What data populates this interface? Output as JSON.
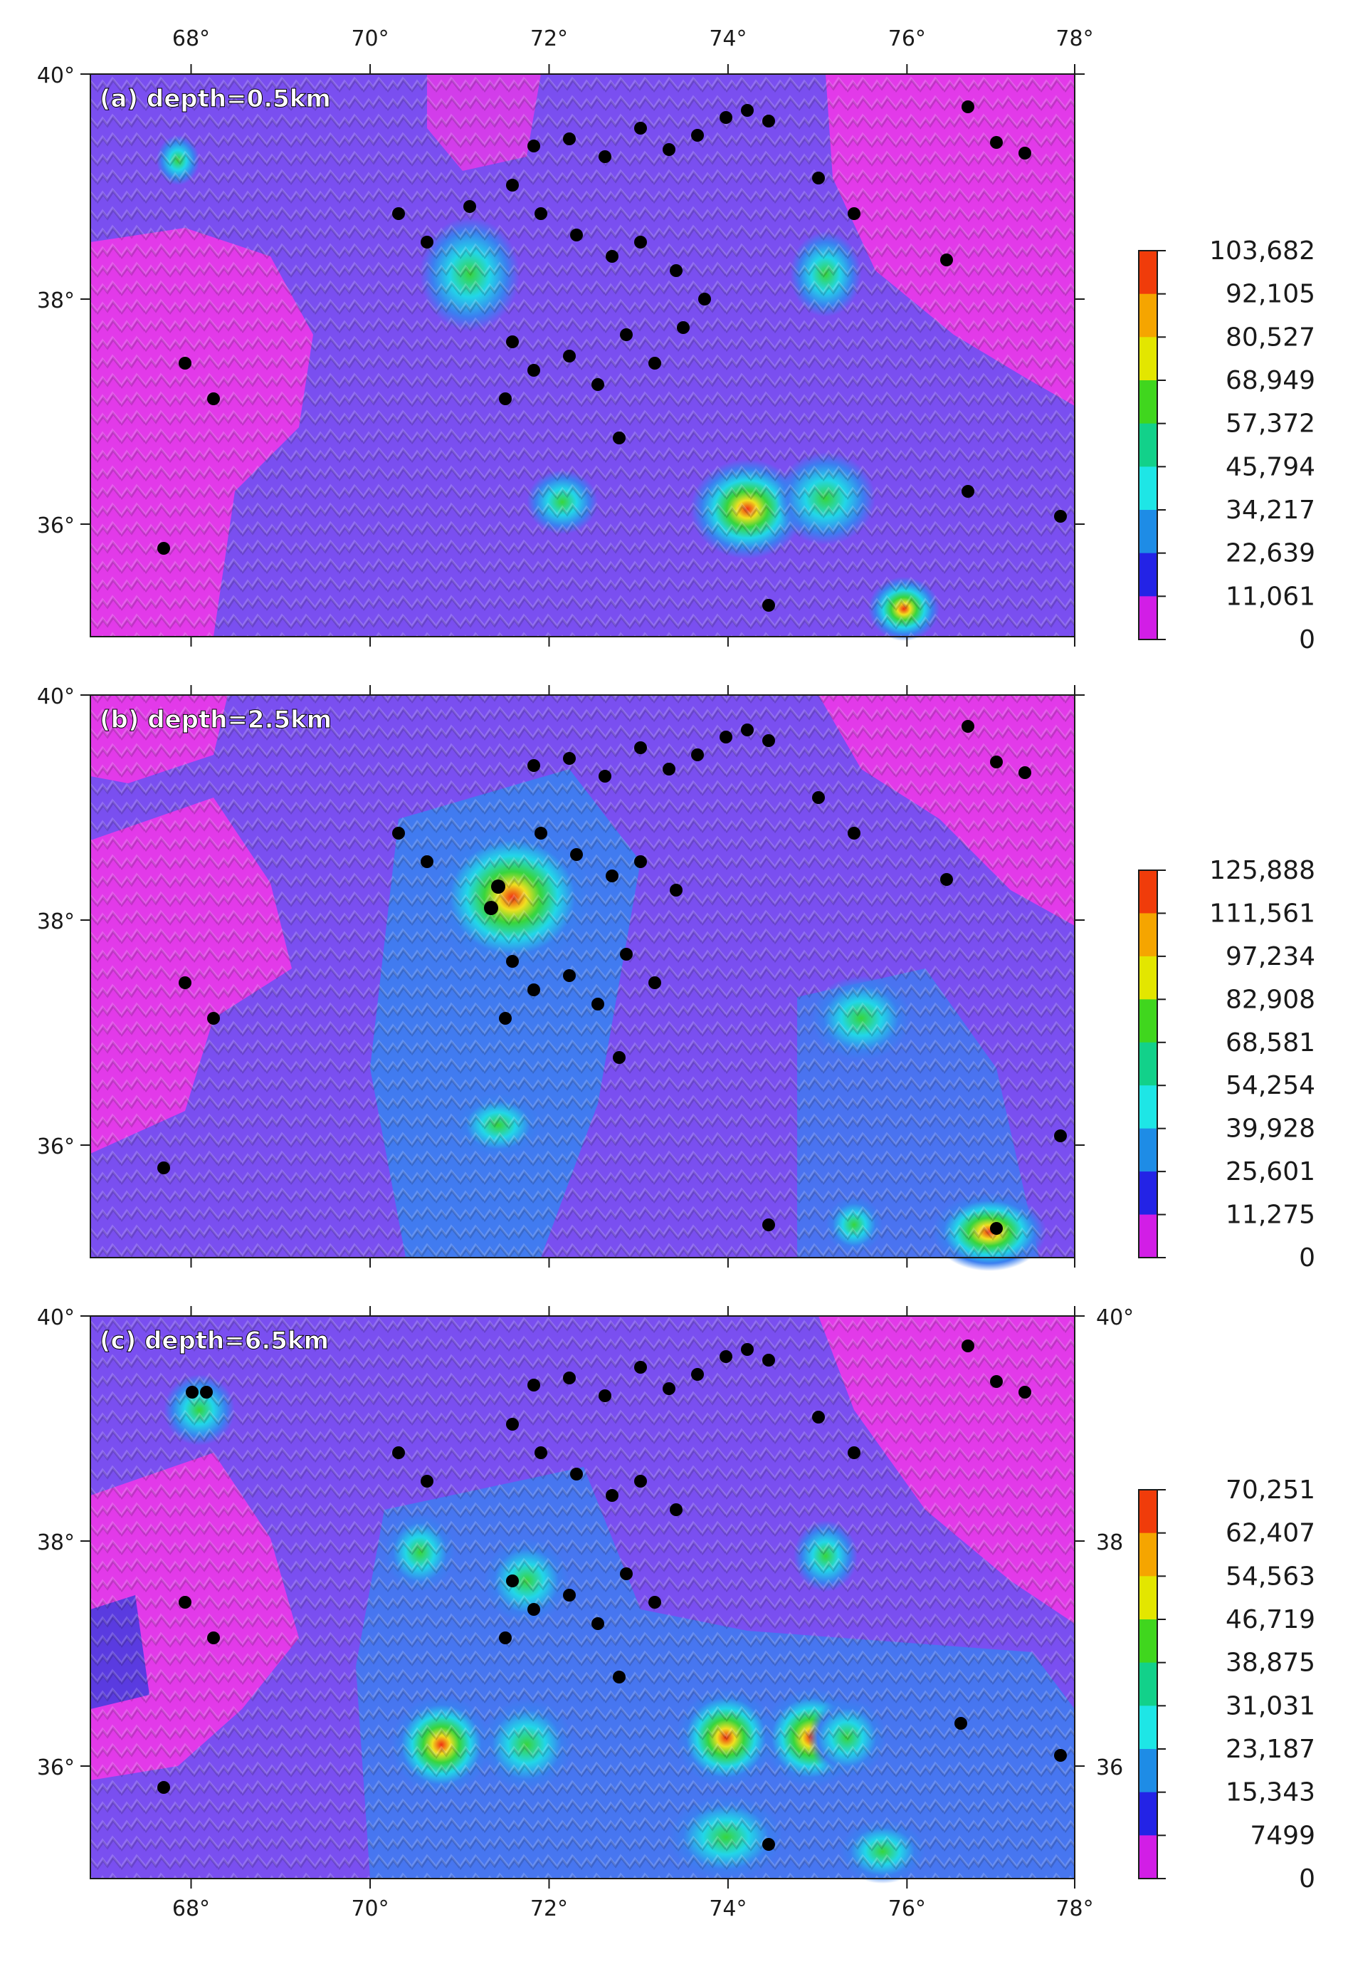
{
  "figure": {
    "x_ticks": [
      "68°",
      "70°",
      "72°",
      "74°",
      "76°",
      "78°"
    ],
    "y_ticks": [
      "40°",
      "38°",
      "36°"
    ],
    "panel_c_right_ticks": [
      "40°",
      "38",
      "36"
    ],
    "panels": [
      {
        "id": "a",
        "label": "(a) depth=0.5km",
        "colorbar_labels": [
          "103,682",
          "92,105",
          "80,527",
          "68,949",
          "57,372",
          "45,794",
          "34,217",
          "22,639",
          "11,061",
          "0"
        ]
      },
      {
        "id": "b",
        "label": "(b) depth=2.5km",
        "colorbar_labels": [
          "125,888",
          "111,561",
          "97,234",
          "82,908",
          "68,581",
          "54,254",
          "39,928",
          "25,601",
          "11,275",
          "0"
        ]
      },
      {
        "id": "c",
        "label": "(c) depth=6.5km",
        "colorbar_labels": [
          "70,251",
          "62,407",
          "54,563",
          "46,719",
          "38,875",
          "31,031",
          "23,187",
          "15,343",
          "7499",
          "0"
        ]
      }
    ],
    "colorbar_colors": [
      "#f03c0a",
      "#f5a500",
      "#e3e600",
      "#40d61e",
      "#12d18a",
      "#1ee6e6",
      "#1e8ce6",
      "#2323e6",
      "#d21ee6"
    ],
    "map_colors": {
      "background_violet": "#7a4ff0",
      "low_magenta": "#e23ae9",
      "medium_blue": "#3b7ff0",
      "cyan": "#22d6e8",
      "green": "#38d53d",
      "yellow": "#f0e020",
      "red": "#f03010",
      "events": "#000000"
    }
  }
}
